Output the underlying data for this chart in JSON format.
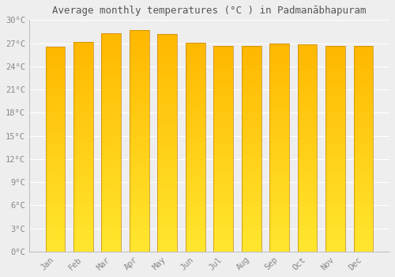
{
  "title": "Average monthly temperatures (°C ) in Padmanābhapuram",
  "months": [
    "Jan",
    "Feb",
    "Mar",
    "Apr",
    "May",
    "Jun",
    "Jul",
    "Aug",
    "Sep",
    "Oct",
    "Nov",
    "Dec"
  ],
  "values": [
    26.5,
    27.2,
    28.3,
    28.7,
    28.2,
    27.1,
    26.6,
    26.6,
    27.0,
    26.8,
    26.6,
    26.6
  ],
  "bar_color": "#FFA500",
  "bar_color_light": "#FFD070",
  "bar_color_dark": "#F5A800",
  "ylim": [
    0,
    30
  ],
  "yticks": [
    0,
    3,
    6,
    9,
    12,
    15,
    18,
    21,
    24,
    27,
    30
  ],
  "ytick_labels": [
    "0°C",
    "3°C",
    "6°C",
    "9°C",
    "12°C",
    "15°C",
    "18°C",
    "21°C",
    "24°C",
    "27°C",
    "30°C"
  ],
  "background_color": "#eeeeee",
  "grid_color": "#ffffff",
  "title_fontsize": 9,
  "tick_fontsize": 7.5,
  "tick_color": "#888888",
  "title_color": "#555555",
  "font_family": "monospace",
  "bar_width": 0.7,
  "figsize": [
    5.0,
    3.5
  ],
  "dpi": 100
}
